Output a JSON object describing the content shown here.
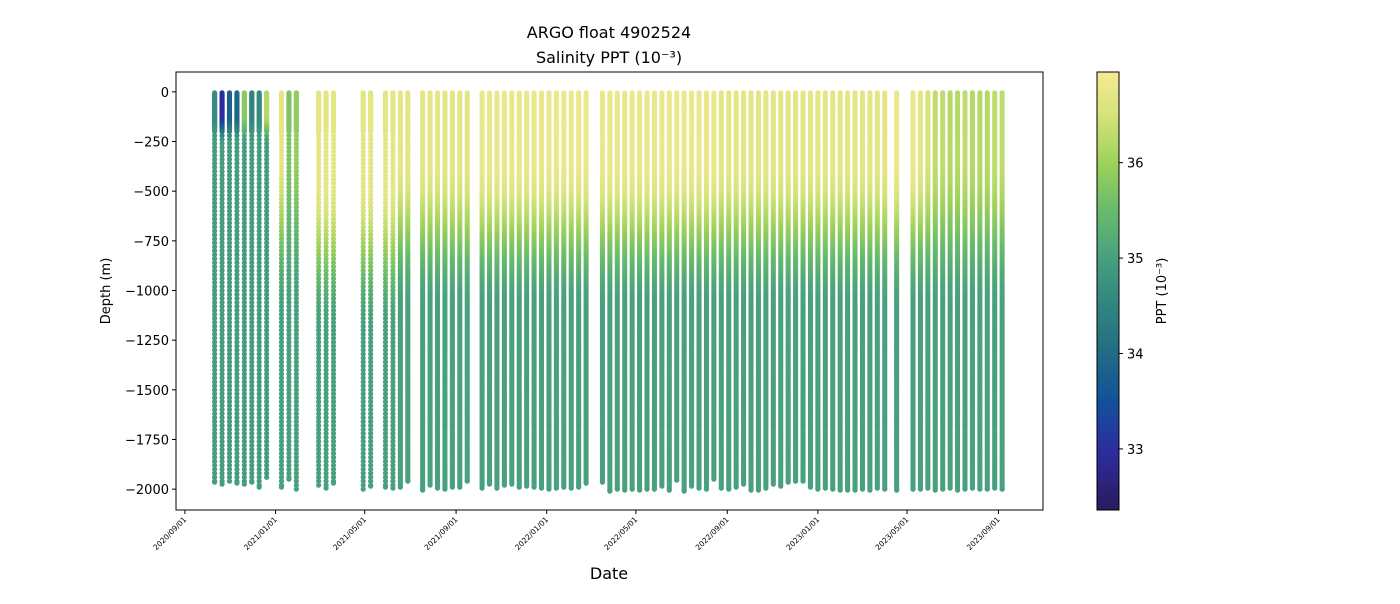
{
  "chart_data": {
    "type": "scatter",
    "title": "ARGO float 4902524",
    "subtitle": "Salinity PPT (10⁻³)",
    "xlabel": "Date",
    "ylabel": "Depth (m)",
    "x_units": "days since 2020-09-01",
    "xlim": [
      -12,
      1155
    ],
    "ylim": [
      -2105,
      100
    ],
    "x_ticks": [
      {
        "day": 0,
        "label": "2020/09/01"
      },
      {
        "day": 122,
        "label": "2021/01/01"
      },
      {
        "day": 242,
        "label": "2021/05/01"
      },
      {
        "day": 365,
        "label": "2021/09/01"
      },
      {
        "day": 487,
        "label": "2022/01/01"
      },
      {
        "day": 607,
        "label": "2022/05/01"
      },
      {
        "day": 730,
        "label": "2022/09/01"
      },
      {
        "day": 852,
        "label": "2023/01/01"
      },
      {
        "day": 972,
        "label": "2023/05/01"
      },
      {
        "day": 1095,
        "label": "2023/09/01"
      }
    ],
    "y_ticks": [
      {
        "value": 0,
        "label": "0"
      },
      {
        "value": -250,
        "label": "−250"
      },
      {
        "value": -500,
        "label": "−500"
      },
      {
        "value": -750,
        "label": "−750"
      },
      {
        "value": -1000,
        "label": "−1000"
      },
      {
        "value": -1250,
        "label": "−1250"
      },
      {
        "value": -1500,
        "label": "−1500"
      },
      {
        "value": -1750,
        "label": "−1750"
      },
      {
        "value": -2000,
        "label": "−2000"
      }
    ],
    "colorbar": {
      "label": "PPT (10⁻³)",
      "range": [
        32.36,
        36.95
      ],
      "ticks": [
        {
          "value": 33,
          "label": "33"
        },
        {
          "value": 34,
          "label": "34"
        },
        {
          "value": 35,
          "label": "35"
        },
        {
          "value": 36,
          "label": "36"
        }
      ],
      "colormap_stops": [
        {
          "value": 32.36,
          "color": "#2a1b5e"
        },
        {
          "value": 33.0,
          "color": "#2c2da0"
        },
        {
          "value": 33.5,
          "color": "#12519a"
        },
        {
          "value": 34.0,
          "color": "#226b84"
        },
        {
          "value": 34.5,
          "color": "#31857e"
        },
        {
          "value": 35.0,
          "color": "#48a07e"
        },
        {
          "value": 35.5,
          "color": "#68bb6c"
        },
        {
          "value": 36.0,
          "color": "#9ed25a"
        },
        {
          "value": 36.5,
          "color": "#d5e37a"
        },
        {
          "value": 36.95,
          "color": "#f6ea93"
        }
      ]
    },
    "profile_groups": [
      {
        "sampling": "sparse",
        "deep_psu": 34.95,
        "decay_start": 130,
        "decay_end": 260,
        "days": [
          40,
          50,
          60,
          70,
          80,
          90,
          100,
          110
        ],
        "surface_psu": [
          34.6,
          33.0,
          33.8,
          33.9,
          35.8,
          34.5,
          34.6,
          36.2
        ],
        "max_depth": [
          -1965,
          -1975,
          -1960,
          -1970,
          -1975,
          -1965,
          -1990,
          -1940
        ]
      },
      {
        "sampling": "sparse",
        "deep_psu": 35.0,
        "decay_start": 300,
        "decay_end": 1100,
        "days": [
          130,
          140,
          150
        ],
        "surface_psu": [
          36.7,
          35.7,
          35.9
        ],
        "max_depth": [
          -1990,
          -1950,
          -2000
        ]
      },
      {
        "sampling": "sparse",
        "deep_psu": 35.0,
        "decay_start": 450,
        "decay_end": 1200,
        "days": [
          180,
          190,
          200,
          240,
          250,
          270,
          280
        ],
        "surface_psu": [
          36.7,
          36.7,
          36.7,
          36.7,
          36.7,
          36.7,
          36.7
        ],
        "max_depth": [
          -1980,
          -1995,
          -1970,
          -2000,
          -1985,
          -1990,
          -1995
        ]
      },
      {
        "sampling": "dense",
        "deep_psu": 35.0,
        "decay_start": 350,
        "decay_end": 1100,
        "days": [
          290,
          300,
          320,
          330,
          340,
          350,
          360,
          370,
          380,
          400,
          410,
          420,
          430,
          440,
          450,
          460,
          470,
          480,
          490,
          500,
          510,
          520,
          530,
          540
        ],
        "surface_psu": [
          36.7,
          36.7,
          36.7,
          36.7,
          36.7,
          36.7,
          36.7,
          36.7,
          36.7,
          36.8,
          36.8,
          36.8,
          36.8,
          36.8,
          36.8,
          36.8,
          36.8,
          36.8,
          36.8,
          36.8,
          36.8,
          36.8,
          36.8,
          36.8
        ],
        "max_depth": [
          -1990,
          -1960,
          -2005,
          -1980,
          -1995,
          -2000,
          -1990,
          -1990,
          -1960,
          -1995,
          -1975,
          -1995,
          -1980,
          -1975,
          -1990,
          -1985,
          -1990,
          -1995,
          -2000,
          -1995,
          -1990,
          -1995,
          -1990,
          -1970
        ]
      },
      {
        "sampling": "dense",
        "deep_psu": 35.0,
        "decay_start": 350,
        "decay_end": 1100,
        "days": [
          562,
          572,
          582,
          592,
          602,
          612,
          622,
          632,
          642,
          652,
          662,
          672,
          682,
          692,
          702,
          712,
          722,
          732,
          742,
          752,
          762,
          772,
          782,
          792,
          802,
          812,
          822,
          832,
          842,
          852,
          862,
          872,
          882,
          892,
          902,
          912,
          922,
          932,
          942,
          958
        ],
        "surface_psu": [
          36.8,
          36.8,
          36.8,
          36.8,
          36.8,
          36.8,
          36.8,
          36.8,
          36.8,
          36.8,
          36.8,
          36.8,
          36.8,
          36.8,
          36.8,
          36.8,
          36.7,
          36.7,
          36.7,
          36.7,
          36.7,
          36.7,
          36.7,
          36.7,
          36.7,
          36.7,
          36.7,
          36.7,
          36.7,
          36.7,
          36.7,
          36.7,
          36.7,
          36.7,
          36.7,
          36.7,
          36.7,
          36.7,
          36.7,
          36.8
        ],
        "max_depth": [
          -1965,
          -2010,
          -2000,
          -2005,
          -2000,
          -2005,
          -2000,
          -2000,
          -1985,
          -2005,
          -1955,
          -2010,
          -1985,
          -1995,
          -2000,
          -1950,
          -1995,
          -2000,
          -1990,
          -1975,
          -2005,
          -2005,
          -1995,
          -1975,
          -1985,
          -1965,
          -1960,
          -1960,
          -1990,
          -2000,
          -1995,
          -2000,
          -2005,
          -2005,
          -2005,
          -2000,
          -2005,
          -1995,
          -2000,
          -2005
        ]
      },
      {
        "sampling": "dense",
        "deep_psu": 35.0,
        "decay_start": 350,
        "decay_end": 1100,
        "days": [
          980,
          990,
          1000,
          1010,
          1020,
          1030,
          1040,
          1050,
          1060,
          1070,
          1080,
          1090,
          1100
        ],
        "surface_psu": [
          36.8,
          36.7,
          36.5,
          36.3,
          36.3,
          36.2,
          36.2,
          36.3,
          36.2,
          36.2,
          36.2,
          36.3,
          36.3
        ],
        "max_depth": [
          -2000,
          -2000,
          -1995,
          -2005,
          -2000,
          -1995,
          -2005,
          -2000,
          -1995,
          -2000,
          -2000,
          -1995,
          -2000
        ]
      }
    ]
  }
}
